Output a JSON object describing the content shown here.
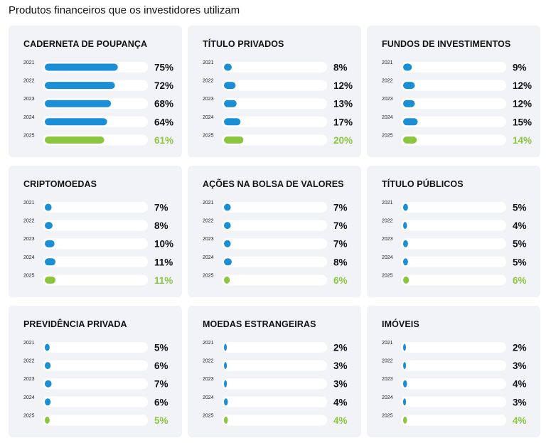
{
  "page": {
    "title": "Produtos financeiros que os investidores utilizam"
  },
  "colors": {
    "bar": "#1a8fd6",
    "highlight": "#8cc63f",
    "track": "#ffffff",
    "card": "#f2f3f6"
  },
  "chart_data": [
    {
      "type": "bar",
      "title": "CADERNETA DE POUPANÇA",
      "categories": [
        "2021",
        "2022",
        "2023",
        "2024",
        "2025"
      ],
      "values": [
        75,
        72,
        68,
        64,
        61
      ],
      "labels": [
        "75%",
        "72%",
        "68%",
        "64%",
        "61%"
      ],
      "xlim": [
        0,
        100
      ]
    },
    {
      "type": "bar",
      "title": "TÍTULO PRIVADOS",
      "categories": [
        "2021",
        "2022",
        "2023",
        "2024",
        "2025"
      ],
      "values": [
        8,
        12,
        13,
        17,
        20
      ],
      "labels": [
        "8%",
        "12%",
        "13%",
        "17%",
        "20%"
      ],
      "xlim": [
        0,
        100
      ]
    },
    {
      "type": "bar",
      "title": "FUNDOS DE INVESTIMENTOS",
      "categories": [
        "2021",
        "2022",
        "2023",
        "2024",
        "2025"
      ],
      "values": [
        9,
        12,
        12,
        15,
        14
      ],
      "labels": [
        "9%",
        "12%",
        "12%",
        "15%",
        "14%"
      ],
      "xlim": [
        0,
        100
      ]
    },
    {
      "type": "bar",
      "title": "CRIPTOMOEDAS",
      "categories": [
        "2021",
        "2022",
        "2023",
        "2024",
        "2025"
      ],
      "values": [
        7,
        8,
        10,
        11,
        11
      ],
      "labels": [
        "7%",
        "8%",
        "10%",
        "11%",
        "11%"
      ],
      "xlim": [
        0,
        100
      ]
    },
    {
      "type": "bar",
      "title": "AÇÕES NA BOLSA DE VALORES",
      "categories": [
        "2021",
        "2022",
        "2023",
        "2024",
        "2025"
      ],
      "values": [
        7,
        7,
        7,
        8,
        6
      ],
      "labels": [
        "7%",
        "7%",
        "7%",
        "8%",
        "6%"
      ],
      "xlim": [
        0,
        100
      ]
    },
    {
      "type": "bar",
      "title": "TÍTULO PÚBLICOS",
      "categories": [
        "2021",
        "2022",
        "2023",
        "2024",
        "2025"
      ],
      "values": [
        5,
        4,
        5,
        5,
        6
      ],
      "labels": [
        "5%",
        "4%",
        "5%",
        "5%",
        "6%"
      ],
      "xlim": [
        0,
        100
      ]
    },
    {
      "type": "bar",
      "title": "PREVIDÊNCIA PRIVADA",
      "categories": [
        "2021",
        "2022",
        "2023",
        "2024",
        "2025"
      ],
      "values": [
        5,
        6,
        7,
        6,
        5
      ],
      "labels": [
        "5%",
        "6%",
        "7%",
        "6%",
        "5%"
      ],
      "xlim": [
        0,
        100
      ]
    },
    {
      "type": "bar",
      "title": "MOEDAS ESTRANGEIRAS",
      "categories": [
        "2021",
        "2022",
        "2023",
        "2024",
        "2025"
      ],
      "values": [
        2,
        3,
        3,
        4,
        4
      ],
      "labels": [
        "2%",
        "3%",
        "3%",
        "4%",
        "4%"
      ],
      "xlim": [
        0,
        100
      ]
    },
    {
      "type": "bar",
      "title": "IMÓVEIS",
      "categories": [
        "2021",
        "2022",
        "2023",
        "2024",
        "2025"
      ],
      "values": [
        2,
        3,
        4,
        3,
        4
      ],
      "labels": [
        "2%",
        "3%",
        "4%",
        "3%",
        "4%"
      ],
      "xlim": [
        0,
        100
      ]
    }
  ]
}
